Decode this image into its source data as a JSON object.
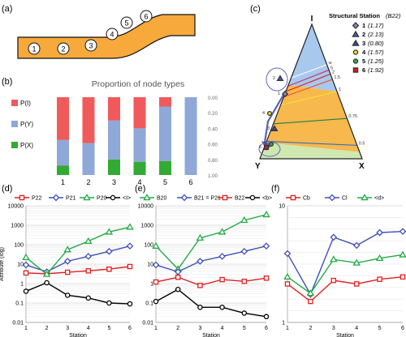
{
  "panel_labels": {
    "a": "(a)",
    "b": "(b)",
    "c": "(c)",
    "d": "(d)",
    "e": "(e)",
    "f": "(f)"
  },
  "panel_a": {
    "stations": [
      "1",
      "2",
      "3",
      "4",
      "5",
      "6"
    ]
  },
  "panel_c": {
    "legend_title": "Structural Station",
    "legend_title_sub": "(B22)",
    "vertex_I": "I",
    "vertex_Y": "Y",
    "vertex_X": "X",
    "contours": [
      "w",
      "5",
      "2",
      "1.5",
      "1",
      "0.75",
      "0.5"
    ],
    "stations": [
      {
        "id": "1",
        "value": "(1.17)",
        "color": "#8c8cc8",
        "marker": "diamond"
      },
      {
        "id": "2",
        "value": "(2.13)",
        "color": "#4a58b8",
        "marker": "triangle"
      },
      {
        "id": "3",
        "value": "(0.80)",
        "color": "#3a4aa8",
        "marker": "triangle"
      },
      {
        "id": "4",
        "value": "(1.57)",
        "color": "#f0e020",
        "marker": "circle"
      },
      {
        "id": "5",
        "value": "(1.25)",
        "color": "#30b040",
        "marker": "circle"
      },
      {
        "id": "6",
        "value": "(1.92)",
        "color": "#d02020",
        "marker": "square"
      }
    ]
  },
  "chart_data": [
    {
      "type": "bar",
      "title": "Proportion of node types",
      "categories": [
        "1",
        "2",
        "3",
        "4",
        "5",
        "6"
      ],
      "series": [
        {
          "name": "P(X)",
          "values": [
            0.12,
            0.0,
            0.2,
            0.17,
            0.18,
            0.0
          ]
        },
        {
          "name": "P(Y)",
          "values": [
            0.33,
            0.41,
            0.5,
            0.43,
            0.7,
            1.0
          ]
        },
        {
          "name": "P(I)",
          "values": [
            0.55,
            0.59,
            0.3,
            0.4,
            0.12,
            0.0
          ]
        }
      ],
      "y_ticks": [
        "0.00",
        "0.20",
        "0.40",
        "0.60",
        "0.80",
        "1.00"
      ],
      "colors": [
        "#33aa33",
        "#8ea8d8",
        "#f05a5a"
      ],
      "legend": "left"
    },
    {
      "type": "line",
      "ylabel": "Attribute (log)",
      "xlabel": "Station",
      "x": [
        1,
        2,
        3,
        4,
        5,
        6
      ],
      "yscale": "log",
      "ylim": [
        0.01,
        10000
      ],
      "y_ticks": [
        "0.01",
        "0.1",
        "1",
        "10",
        "100",
        "1000",
        "10000"
      ],
      "series": [
        {
          "name": "P22",
          "color": "#e02020",
          "marker": "square",
          "values": [
            3.5,
            3.2,
            3.8,
            4.5,
            5.5,
            7.5
          ]
        },
        {
          "name": "P21",
          "color": "#4050b8",
          "marker": "diamond",
          "values": [
            9,
            4,
            14,
            25,
            45,
            85
          ]
        },
        {
          "name": "P20",
          "color": "#22aa44",
          "marker": "triangle",
          "values": [
            22,
            3,
            55,
            150,
            450,
            800
          ]
        },
        {
          "name": "<I>",
          "color": "#000000",
          "marker": "circle",
          "values": [
            0.4,
            1.1,
            0.25,
            0.18,
            0.1,
            0.09
          ]
        }
      ]
    },
    {
      "type": "line",
      "xlabel": "Station",
      "x": [
        1,
        2,
        3,
        4,
        5,
        6
      ],
      "yscale": "log",
      "ylim": [
        0.01,
        10000
      ],
      "y_ticks": [
        "0.01",
        "0.1",
        "1",
        "10",
        "100",
        "1000",
        "10000"
      ],
      "series": [
        {
          "name": "B20",
          "color": "#22aa44",
          "marker": "triangle",
          "values": [
            85,
            5.5,
            220,
            450,
            1800,
            3500
          ]
        },
        {
          "name": "B21 = P21",
          "color": "#4050b8",
          "marker": "diamond",
          "values": [
            9,
            4,
            14,
            25,
            45,
            85
          ]
        },
        {
          "name": "B22",
          "color": "#e02020",
          "marker": "square",
          "values": [
            1.2,
            2.1,
            0.8,
            1.6,
            1.3,
            1.9
          ]
        },
        {
          "name": "<b>",
          "color": "#000000",
          "marker": "circle",
          "values": [
            0.12,
            0.5,
            0.06,
            0.06,
            0.03,
            0.02
          ]
        }
      ]
    },
    {
      "type": "line",
      "xlabel": "Station",
      "x": [
        1,
        2,
        3,
        4,
        5,
        6
      ],
      "ylim": [
        0,
        10
      ],
      "y_ticks": [
        "1",
        "10"
      ],
      "series": [
        {
          "name": "Cb",
          "color": "#e02020",
          "marker": "square",
          "values": [
            3.3,
            1.8,
            3.6,
            3.3,
            3.7,
            3.9
          ]
        },
        {
          "name": "Cl",
          "color": "#4050b8",
          "marker": "diamond",
          "values": [
            5.9,
            2.4,
            7.3,
            6.6,
            7.7,
            7.8
          ]
        },
        {
          "name": "<d>",
          "color": "#22aa44",
          "marker": "triangle",
          "values": [
            3.9,
            2.5,
            5.4,
            5.1,
            5.5,
            5.8
          ]
        }
      ]
    }
  ]
}
